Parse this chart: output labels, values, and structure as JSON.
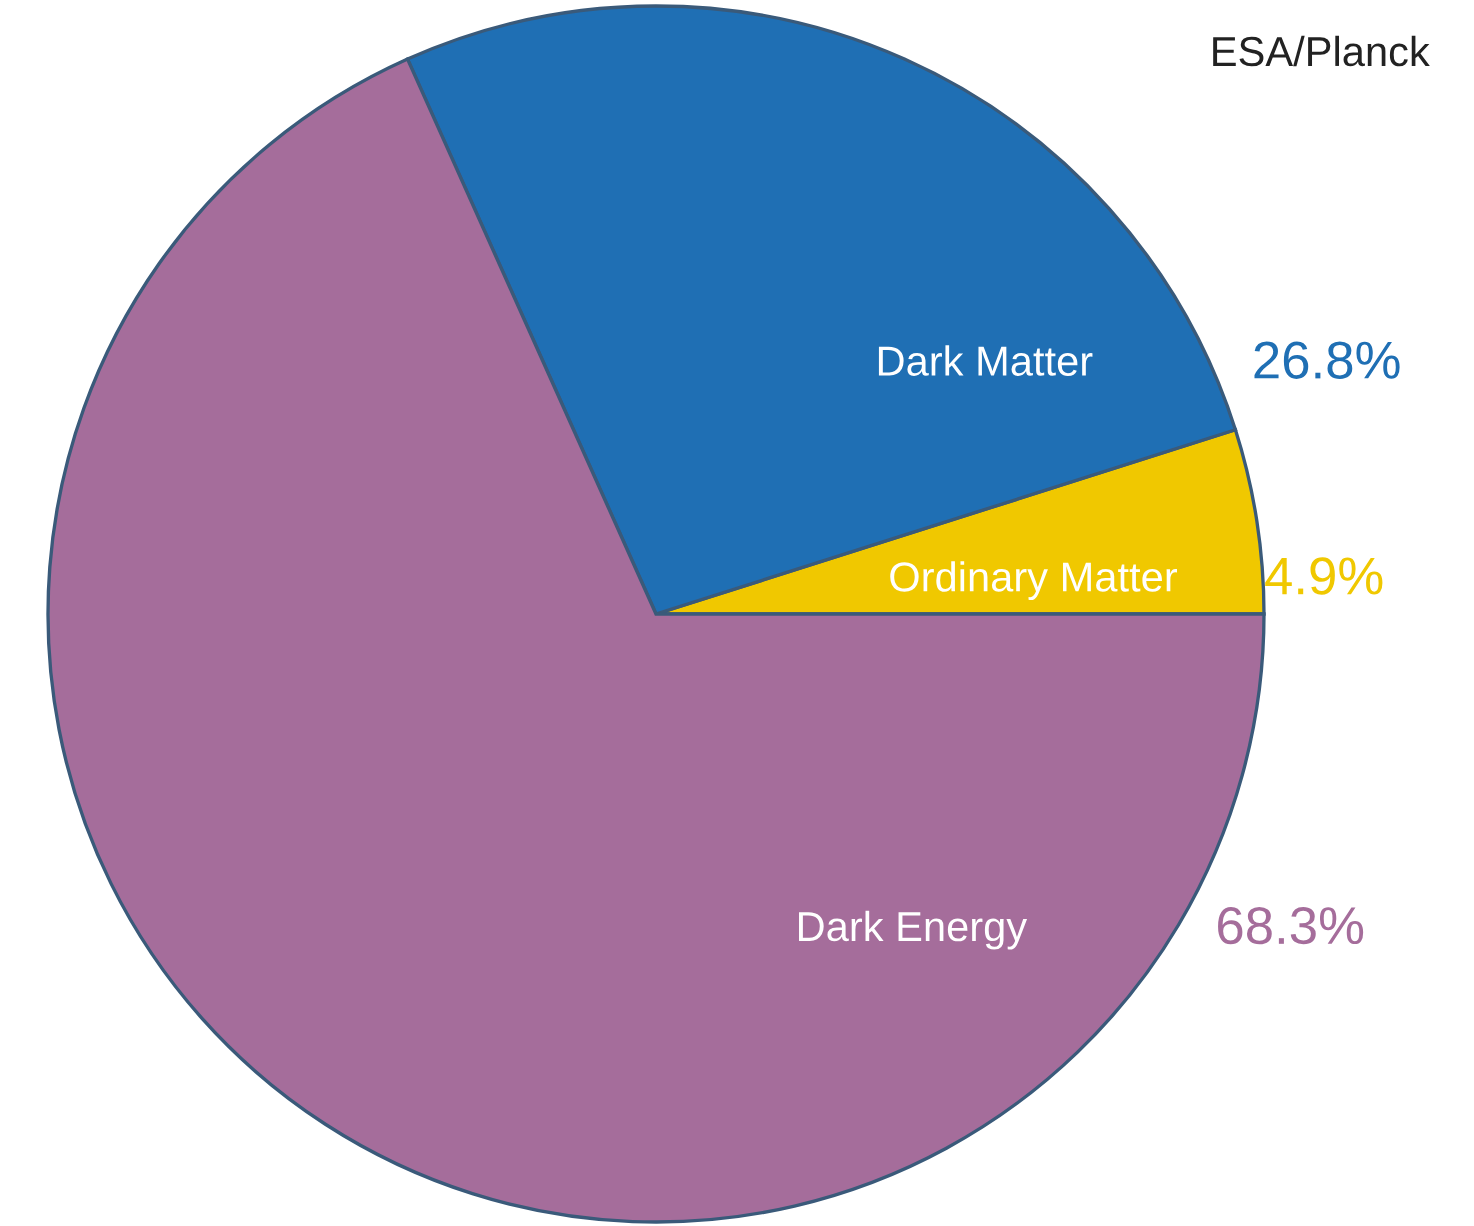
{
  "chart_data": {
    "type": "pie",
    "categories": [
      "Ordinary Matter",
      "Dark Matter",
      "Dark Energy"
    ],
    "values": [
      4.9,
      26.8,
      68.3
    ],
    "colors": [
      "#f0c800",
      "#1f6fb4",
      "#a56d9b"
    ],
    "value_labels": [
      "4.9%",
      "26.8%",
      "68.3%"
    ],
    "annotations": [
      "ESA/Planck"
    ],
    "legend": false
  }
}
